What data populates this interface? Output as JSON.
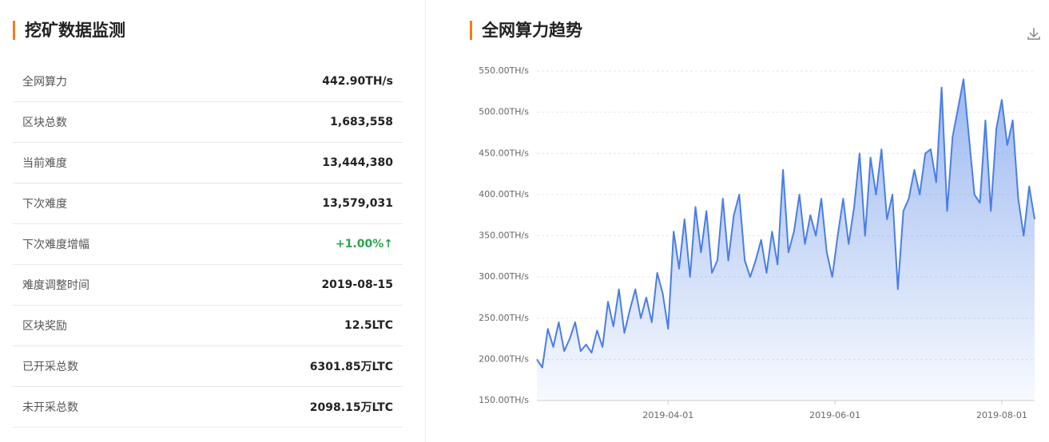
{
  "panel": {
    "title": "挖矿数据监测",
    "rows": [
      {
        "label": "全网算力",
        "value": "442.90TH/s"
      },
      {
        "label": "区块总数",
        "value": "1,683,558"
      },
      {
        "label": "当前难度",
        "value": "13,444,380"
      },
      {
        "label": "下次难度",
        "value": "13,579,031"
      },
      {
        "label": "下次难度增幅",
        "value": "+1.00%↑"
      },
      {
        "label": "难度调整时间",
        "value": "2019-08-15"
      },
      {
        "label": "区块奖励",
        "value": "12.5LTC"
      },
      {
        "label": "已开采总数",
        "value": "6301.85万LTC"
      },
      {
        "label": "未开采总数",
        "value": "2098.15万LTC"
      }
    ]
  },
  "chart_data": {
    "type": "area",
    "title": "全网算力趋势",
    "color": "#4a7ee6",
    "x": [
      "2019-02-12",
      "2019-02-14",
      "2019-02-16",
      "2019-02-18",
      "2019-02-20",
      "2019-02-22",
      "2019-02-24",
      "2019-02-26",
      "2019-02-28",
      "2019-03-02",
      "2019-03-04",
      "2019-03-06",
      "2019-03-08",
      "2019-03-10",
      "2019-03-12",
      "2019-03-14",
      "2019-03-16",
      "2019-03-18",
      "2019-03-20",
      "2019-03-22",
      "2019-03-24",
      "2019-03-26",
      "2019-03-28",
      "2019-03-30",
      "2019-04-01",
      "2019-04-03",
      "2019-04-05",
      "2019-04-07",
      "2019-04-09",
      "2019-04-11",
      "2019-04-13",
      "2019-04-15",
      "2019-04-17",
      "2019-04-19",
      "2019-04-21",
      "2019-04-23",
      "2019-04-25",
      "2019-04-27",
      "2019-04-29",
      "2019-05-01",
      "2019-05-03",
      "2019-05-05",
      "2019-05-07",
      "2019-05-09",
      "2019-05-11",
      "2019-05-13",
      "2019-05-15",
      "2019-05-17",
      "2019-05-19",
      "2019-05-21",
      "2019-05-23",
      "2019-05-25",
      "2019-05-27",
      "2019-05-29",
      "2019-05-31",
      "2019-06-02",
      "2019-06-04",
      "2019-06-06",
      "2019-06-08",
      "2019-06-10",
      "2019-06-12",
      "2019-06-14",
      "2019-06-16",
      "2019-06-18",
      "2019-06-20",
      "2019-06-22",
      "2019-06-24",
      "2019-06-26",
      "2019-06-28",
      "2019-06-30",
      "2019-07-02",
      "2019-07-04",
      "2019-07-06",
      "2019-07-08",
      "2019-07-10",
      "2019-07-12",
      "2019-07-14",
      "2019-07-16",
      "2019-07-18",
      "2019-07-20",
      "2019-07-22",
      "2019-07-24",
      "2019-07-26",
      "2019-07-28",
      "2019-07-30",
      "2019-08-01",
      "2019-08-03",
      "2019-08-05",
      "2019-08-07",
      "2019-08-09",
      "2019-08-11",
      "2019-08-13"
    ],
    "values": [
      200,
      190,
      237,
      215,
      245,
      210,
      225,
      245,
      210,
      218,
      208,
      235,
      215,
      270,
      240,
      285,
      232,
      260,
      285,
      250,
      275,
      245,
      305,
      280,
      237,
      355,
      310,
      370,
      300,
      385,
      330,
      380,
      305,
      320,
      395,
      320,
      375,
      400,
      320,
      300,
      320,
      345,
      305,
      355,
      315,
      430,
      330,
      355,
      400,
      340,
      375,
      350,
      395,
      330,
      300,
      350,
      395,
      340,
      385,
      450,
      350,
      445,
      400,
      455,
      370,
      400,
      285,
      380,
      395,
      430,
      400,
      450,
      455,
      415,
      530,
      380,
      470,
      505,
      540,
      470,
      400,
      390,
      490,
      380,
      480,
      515,
      460,
      490,
      395,
      350,
      410,
      370
    ],
    "xlim": [
      "2019-02-12",
      "2019-08-13"
    ],
    "xticks": [
      "2019-04-01",
      "2019-06-01",
      "2019-08-01"
    ],
    "ylim": [
      150,
      550
    ],
    "yticks": [
      {
        "value": 150,
        "label": "150.00TH/s"
      },
      {
        "value": 200,
        "label": "200.00TH/s"
      },
      {
        "value": 250,
        "label": "250.00TH/s"
      },
      {
        "value": 300,
        "label": "300.00TH/s"
      },
      {
        "value": 350,
        "label": "350.00TH/s"
      },
      {
        "value": 400,
        "label": "400.00TH/s"
      },
      {
        "value": 450,
        "label": "450.00TH/s"
      },
      {
        "value": 500,
        "label": "500.00TH/s"
      },
      {
        "value": 550,
        "label": "550.00TH/s"
      }
    ],
    "grid": true
  }
}
